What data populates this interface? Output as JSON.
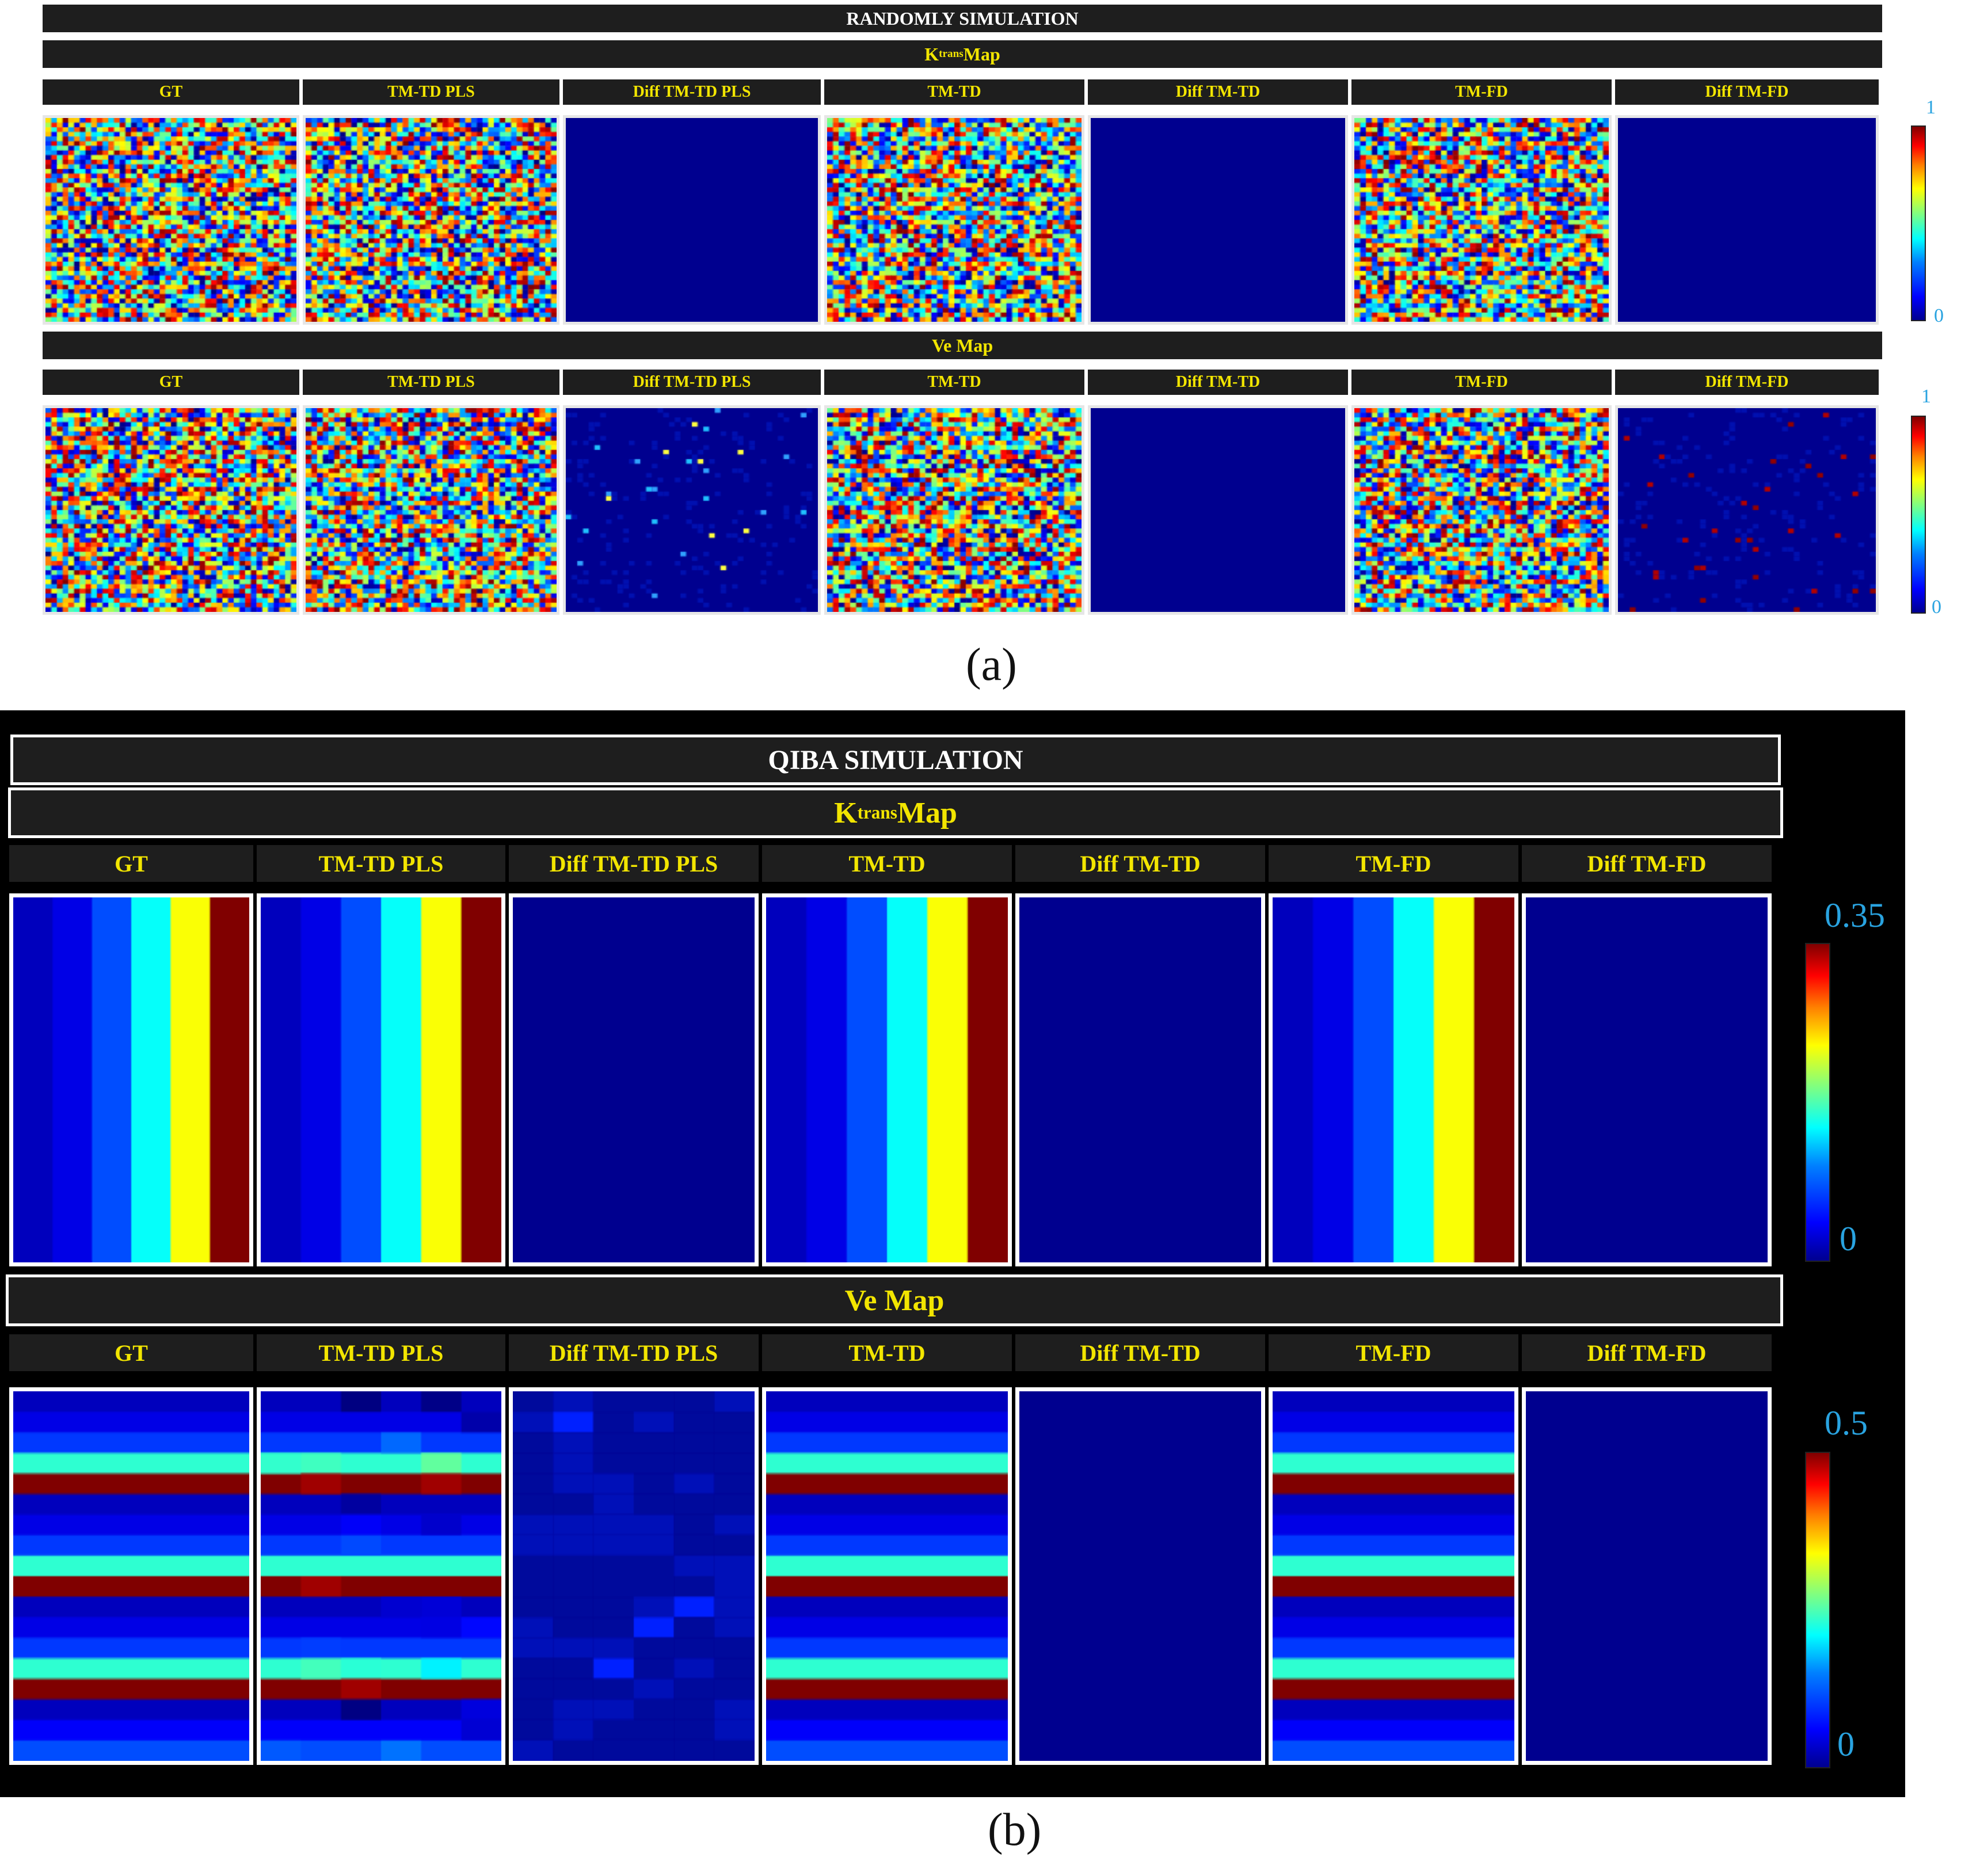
{
  "panel_a": {
    "title": "RANDOMLY SIMULATION",
    "ktrans": {
      "label_main": "K",
      "label_sup": "trans",
      "label_rest": " Map"
    },
    "ve": {
      "label": "Ve Map"
    },
    "columns": [
      "GT",
      "TM-TD PLS",
      "Diff TM-TD PLS",
      "TM-TD",
      "Diff TM-TD",
      "TM-FD",
      "Diff TM-FD"
    ],
    "colorbar_ktrans": {
      "max": "1",
      "min": "0"
    },
    "colorbar_ve": {
      "max": "1",
      "min": "0"
    },
    "caption": "(a)"
  },
  "panel_b": {
    "title": "QIBA SIMULATION",
    "ktrans": {
      "label_main": "K",
      "label_sup": "trans",
      "label_rest": " Map"
    },
    "ve": {
      "label": "Ve Map"
    },
    "columns": [
      "GT",
      "TM-TD  PLS",
      "Diff TM-TD  PLS",
      "TM-TD",
      "Diff TM-TD",
      "TM-FD",
      "Diff TM-FD"
    ],
    "colorbar_ktrans": {
      "max": "0.35",
      "min": "0"
    },
    "colorbar_ve": {
      "max": "0.5",
      "min": "0"
    },
    "caption": "(b)"
  },
  "colors": {
    "header_bg": "#1e1e1e",
    "header_text": "#f2e500",
    "diff_blue": "#00008f",
    "colorbar_label": "#29a3e0"
  }
}
